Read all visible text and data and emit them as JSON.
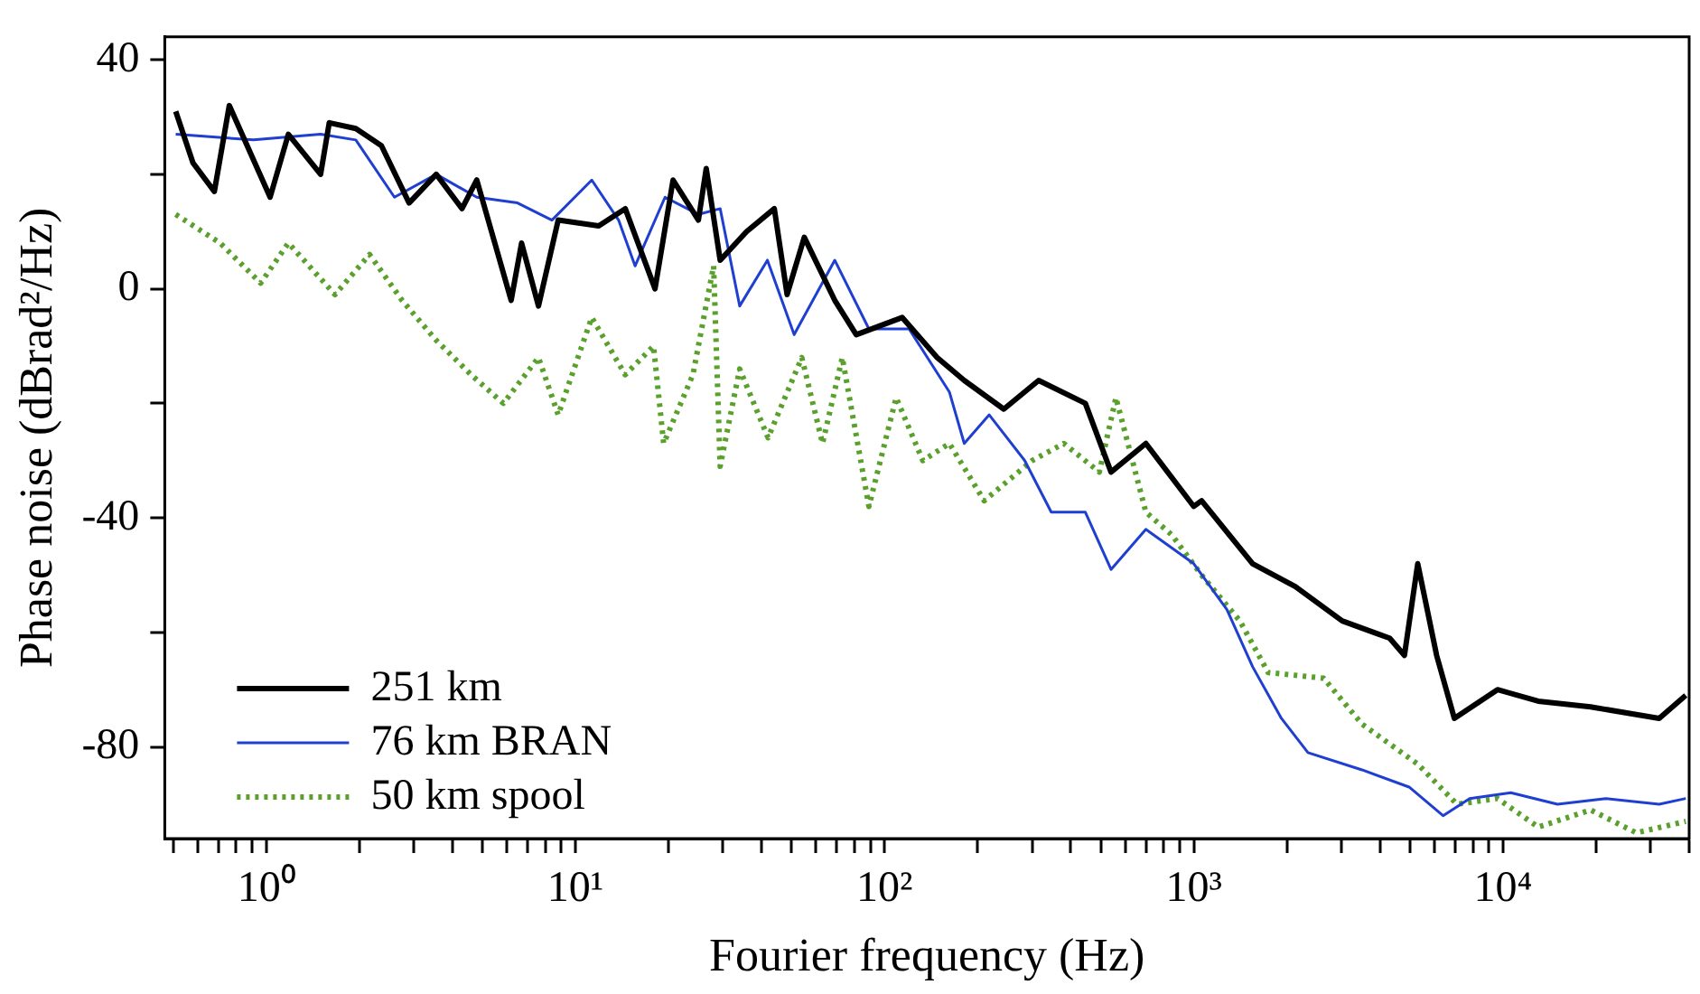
{
  "chart_data": {
    "type": "line",
    "xlabel": "Fourier frequency (Hz)",
    "ylabel": "Phase noise (dBrad²/Hz)",
    "log": "x",
    "legend": "bottom left",
    "marker": "none",
    "grid": false,
    "xlim": [
      0.47,
      40000
    ],
    "ylim": [
      -96,
      44
    ],
    "xticks": [
      {
        "value": 0.5,
        "label": null
      },
      {
        "value": 0.6,
        "label": null
      },
      {
        "value": 0.7,
        "label": null
      },
      {
        "value": 0.8,
        "label": null
      },
      {
        "value": 0.9,
        "label": null
      },
      {
        "value": 1,
        "label": "10⁰"
      },
      {
        "value": 2,
        "label": null
      },
      {
        "value": 3,
        "label": null
      },
      {
        "value": 4,
        "label": null
      },
      {
        "value": 5,
        "label": null
      },
      {
        "value": 6,
        "label": null
      },
      {
        "value": 7,
        "label": null
      },
      {
        "value": 8,
        "label": null
      },
      {
        "value": 9,
        "label": null
      },
      {
        "value": 10,
        "label": "10¹"
      },
      {
        "value": 20,
        "label": null
      },
      {
        "value": 30,
        "label": null
      },
      {
        "value": 40,
        "label": null
      },
      {
        "value": 50,
        "label": null
      },
      {
        "value": 60,
        "label": null
      },
      {
        "value": 70,
        "label": null
      },
      {
        "value": 80,
        "label": null
      },
      {
        "value": 90,
        "label": null
      },
      {
        "value": 100,
        "label": "10²"
      },
      {
        "value": 200,
        "label": null
      },
      {
        "value": 300,
        "label": null
      },
      {
        "value": 400,
        "label": null
      },
      {
        "value": 500,
        "label": null
      },
      {
        "value": 600,
        "label": null
      },
      {
        "value": 700,
        "label": null
      },
      {
        "value": 800,
        "label": null
      },
      {
        "value": 900,
        "label": null
      },
      {
        "value": 1000,
        "label": "10³"
      },
      {
        "value": 2000,
        "label": null
      },
      {
        "value": 3000,
        "label": null
      },
      {
        "value": 4000,
        "label": null
      },
      {
        "value": 5000,
        "label": null
      },
      {
        "value": 6000,
        "label": null
      },
      {
        "value": 7000,
        "label": null
      },
      {
        "value": 8000,
        "label": null
      },
      {
        "value": 9000,
        "label": null
      },
      {
        "value": 10000,
        "label": "10⁴"
      },
      {
        "value": 20000,
        "label": null
      },
      {
        "value": 30000,
        "label": null
      },
      {
        "value": 40000,
        "label": null
      }
    ],
    "yticks": [
      40,
      {
        "value": 20,
        "label": null
      },
      0,
      {
        "value": -20,
        "label": null
      },
      -40,
      {
        "value": -60,
        "label": null
      },
      -80
    ],
    "series": [
      {
        "name": "251 km",
        "color": "#000000",
        "line_style": "solid",
        "x": [
          0.51,
          0.58,
          0.68,
          0.76,
          1.03,
          1.18,
          1.5,
          1.6,
          1.95,
          2.36,
          2.9,
          3.55,
          4.3,
          4.8,
          6.2,
          6.7,
          7.6,
          8.8,
          11.9,
          14.5,
          18.1,
          20.7,
          25,
          26.5,
          29.4,
          35.8,
          44,
          48.4,
          55,
          69,
          81,
          114,
          148,
          181,
          243,
          315,
          446,
          540,
          700,
          1000,
          1060,
          1550,
          2130,
          3020,
          4300,
          4800,
          5300,
          6100,
          6960,
          9600,
          13000,
          19200,
          32000,
          39000
        ],
        "values": [
          31,
          22,
          17,
          32,
          16,
          27,
          20,
          29,
          28,
          25,
          15,
          20,
          14,
          19,
          -2,
          8,
          -3,
          12,
          11,
          14,
          0,
          19,
          12,
          21,
          5,
          10,
          14,
          -1,
          9,
          -2,
          -8,
          -5,
          -12,
          -16,
          -21,
          -16,
          -20,
          -32,
          -27,
          -38,
          -37,
          -48,
          -52,
          -58,
          -61,
          -64,
          -48,
          -64,
          -75,
          -70,
          -72,
          -73,
          -75,
          -71
        ]
      },
      {
        "name": "76 km BRAN",
        "color": "#1f3fd0",
        "line_style": "solid",
        "x": [
          0.51,
          0.91,
          1.5,
          1.95,
          2.6,
          3.55,
          4.8,
          6.5,
          8.4,
          11.3,
          13.8,
          15.6,
          19.5,
          25,
          29.4,
          34,
          41.8,
          51,
          69,
          89,
          120,
          162,
          181,
          218,
          284,
          346,
          446,
          540,
          700,
          1000,
          1280,
          1550,
          1920,
          2340,
          3500,
          4970,
          6400,
          7800,
          10600,
          15000,
          21500,
          32000,
          39000
        ],
        "values": [
          27,
          26,
          27,
          26,
          16,
          20,
          16,
          15,
          12,
          19,
          12,
          4,
          16,
          13,
          14,
          -3,
          5,
          -8,
          5,
          -7,
          -7,
          -18,
          -27,
          -22,
          -30,
          -39,
          -39,
          -49,
          -42,
          -48,
          -56,
          -66,
          -75,
          -81,
          -84,
          -87,
          -92,
          -89,
          -88,
          -90,
          -89,
          -90,
          -89
        ]
      },
      {
        "name": "50 km spool",
        "color": "#5aa02c",
        "line_style": "dotted",
        "x": [
          0.51,
          0.71,
          0.96,
          1.18,
          1.67,
          2.16,
          2.75,
          3.55,
          4.6,
          5.85,
          7.6,
          8.8,
          11.3,
          14.5,
          17.9,
          19.3,
          24,
          28,
          29.4,
          34,
          42,
          54,
          63,
          73,
          89,
          109,
          133,
          162,
          210,
          300,
          380,
          495,
          560,
          700,
          850,
          1060,
          1410,
          1740,
          2630,
          3500,
          5300,
          7100,
          9600,
          13000,
          19200,
          27000,
          39000
        ],
        "values": [
          13,
          8,
          1,
          8,
          -1,
          6,
          -2,
          -9,
          -15,
          -20,
          -12,
          -22,
          -5,
          -15,
          -10,
          -27,
          -15,
          4,
          -31,
          -14,
          -26,
          -12,
          -27,
          -12,
          -38,
          -19,
          -30,
          -27,
          -37,
          -30,
          -27,
          -32,
          -19,
          -39,
          -43,
          -50,
          -58,
          -67,
          -68,
          -76,
          -83,
          -90,
          -89,
          -94,
          -91,
          -95,
          -93
        ]
      }
    ]
  }
}
